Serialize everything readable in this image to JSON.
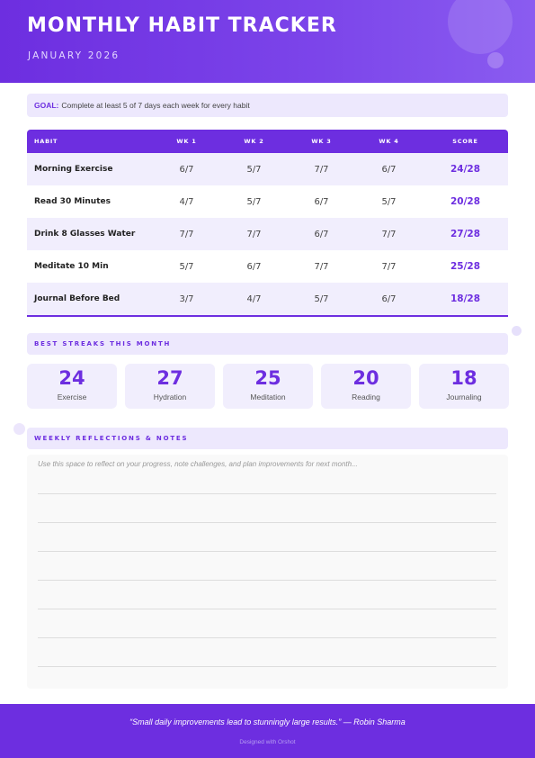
{
  "header": {
    "title": "MONTHLY HABIT TRACKER",
    "subtitle": "JANUARY 2026"
  },
  "goal": {
    "label": "GOAL:",
    "text": "Complete at least 5 of 7 days each week for every habit"
  },
  "table": {
    "columns": [
      "HABIT",
      "WK 1",
      "WK 2",
      "WK 3",
      "WK 4",
      "SCORE"
    ],
    "rows": [
      {
        "habit": "Morning Exercise",
        "wk1": "6/7",
        "wk2": "5/7",
        "wk3": "7/7",
        "wk4": "6/7",
        "score": "24/28"
      },
      {
        "habit": "Read 30 Minutes",
        "wk1": "4/7",
        "wk2": "5/7",
        "wk3": "6/7",
        "wk4": "5/7",
        "score": "20/28"
      },
      {
        "habit": "Drink 8 Glasses Water",
        "wk1": "7/7",
        "wk2": "7/7",
        "wk3": "6/7",
        "wk4": "7/7",
        "score": "27/28"
      },
      {
        "habit": "Meditate 10 Min",
        "wk1": "5/7",
        "wk2": "6/7",
        "wk3": "7/7",
        "wk4": "7/7",
        "score": "25/28"
      },
      {
        "habit": "Journal Before Bed",
        "wk1": "3/7",
        "wk2": "4/7",
        "wk3": "5/7",
        "wk4": "6/7",
        "score": "18/28"
      }
    ]
  },
  "streaks": {
    "heading": "BEST STREAKS THIS MONTH",
    "cards": [
      {
        "value": "24",
        "label": "Exercise"
      },
      {
        "value": "27",
        "label": "Hydration"
      },
      {
        "value": "25",
        "label": "Meditation"
      },
      {
        "value": "20",
        "label": "Reading"
      },
      {
        "value": "18",
        "label": "Journaling"
      }
    ]
  },
  "notes": {
    "heading": "WEEKLY REFLECTIONS & NOTES",
    "placeholder": "Use this space to reflect on your progress, note challenges, and plan improvements for next month..."
  },
  "footer": {
    "quote": "“Small daily improvements lead to stunningly large results.” — Robin Sharma",
    "credit": "Designed with Orshot"
  },
  "colors": {
    "accent": "#6d2ee0",
    "light_accent": "#ede8fd",
    "row_alt": "#f1eefd"
  }
}
